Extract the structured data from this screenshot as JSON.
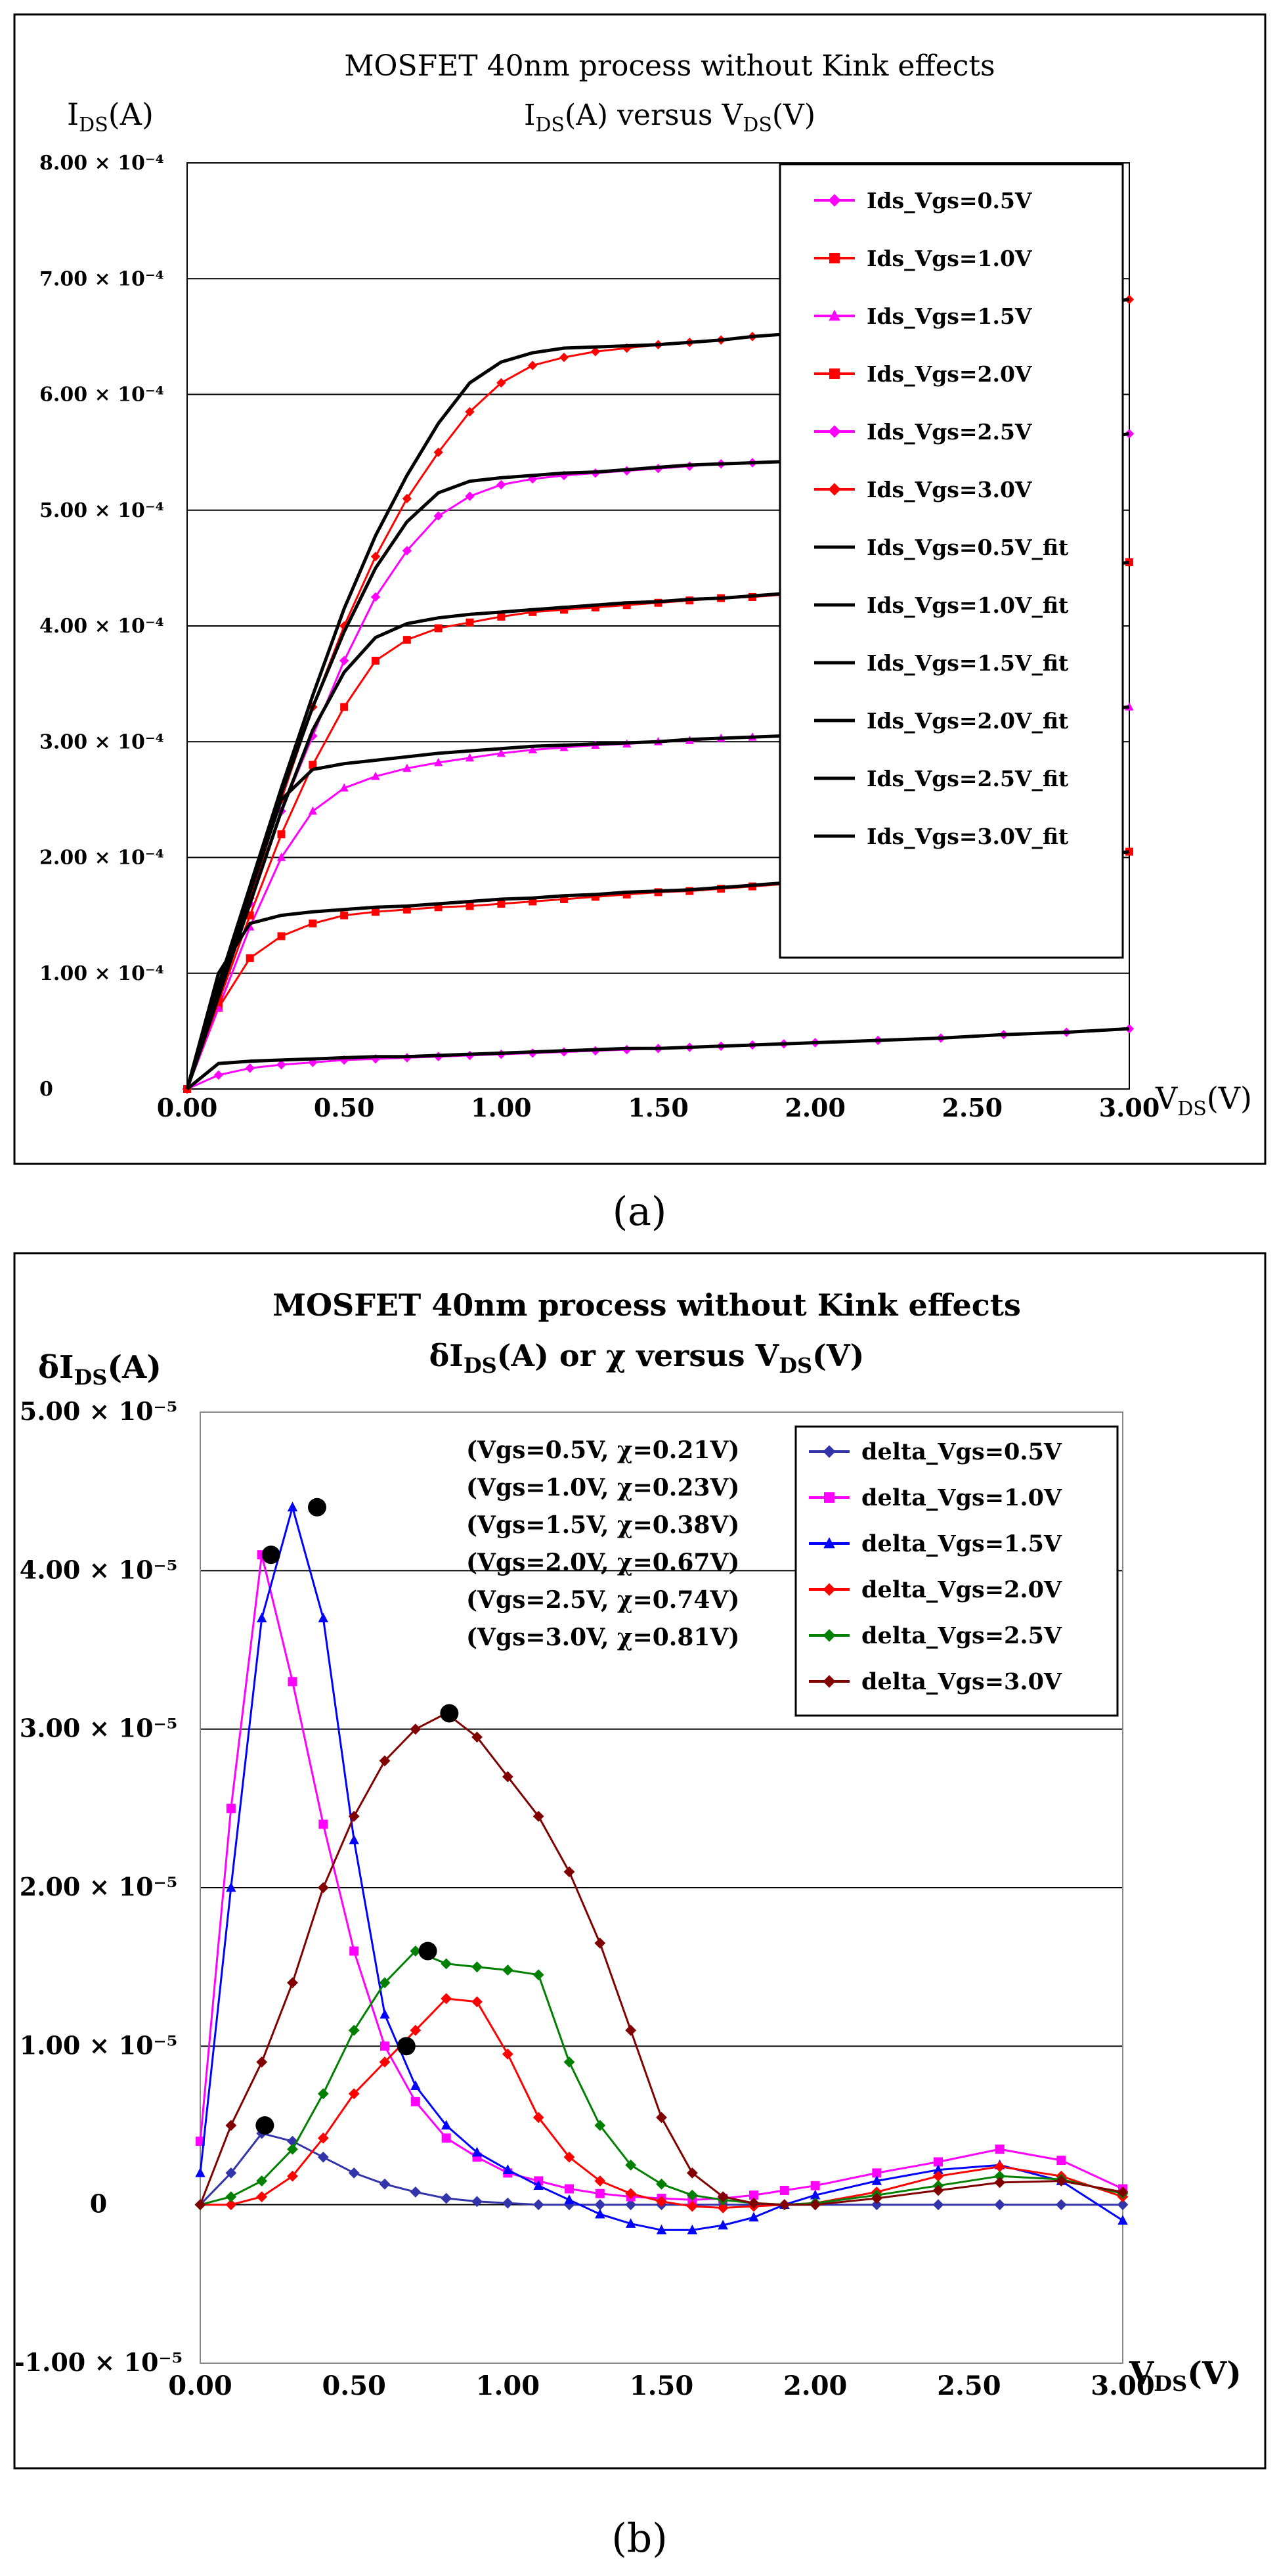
{
  "chart_data": [
    {
      "type": "line",
      "panel_caption": "(a)",
      "title": "MOSFET 40nm process without Kink effects",
      "subtitle": "IDS(A) versus VDS(V)",
      "subtitle_main": "I",
      "subtitle_sub": "DS",
      "subtitle_rest": "(A) versus V",
      "subtitle_sub2": "DS",
      "subtitle_tail": "(V)",
      "ylabel": "IDS(A)",
      "ylabel_main": "I",
      "ylabel_sub": "DS",
      "ylabel_rest": "(A)",
      "xlabel": "VDS(V)",
      "xlabel_main": "V",
      "xlabel_sub": "DS",
      "xlabel_rest": "(V)",
      "xlim": [
        0,
        3
      ],
      "ylim": [
        0,
        0.0008
      ],
      "x_ticks": [
        0,
        0.5,
        1,
        1.5,
        2,
        2.5,
        3
      ],
      "x_tick_labels": [
        "0.00",
        "0.50",
        "1.00",
        "1.50",
        "2.00",
        "2.50",
        "3.00"
      ],
      "y_ticks": [
        0,
        0.0001,
        0.0002,
        0.0003,
        0.0004,
        0.0005,
        0.0006,
        0.0007,
        0.0008
      ],
      "y_tick_labels": [
        "0",
        "1.00 × 10⁻⁴",
        "2.00 × 10⁻⁴",
        "3.00 × 10⁻⁴",
        "4.00 × 10⁻⁴",
        "5.00 × 10⁻⁴",
        "6.00 × 10⁻⁴",
        "7.00 × 10⁻⁴",
        "8.00 × 10⁻⁴"
      ],
      "grid": true,
      "legend_position": "top-right",
      "x": [
        0,
        0.1,
        0.2,
        0.3,
        0.4,
        0.5,
        0.6,
        0.7,
        0.8,
        0.9,
        1.0,
        1.1,
        1.2,
        1.3,
        1.4,
        1.5,
        1.6,
        1.7,
        1.8,
        1.9,
        2.0,
        2.2,
        2.4,
        2.6,
        2.8,
        3.0
      ],
      "series": [
        {
          "name": "Ids_Vgs=0.5V",
          "color": "#ff00ff",
          "marker": "diamond",
          "values": [
            0,
            1.2e-05,
            1.8e-05,
            2.1e-05,
            2.3e-05,
            2.5e-05,
            2.6e-05,
            2.7e-05,
            2.8e-05,
            2.9e-05,
            3e-05,
            3.1e-05,
            3.2e-05,
            3.3e-05,
            3.4e-05,
            3.5e-05,
            3.6e-05,
            3.7e-05,
            3.8e-05,
            3.9e-05,
            4e-05,
            4.2e-05,
            4.4e-05,
            4.7e-05,
            4.9e-05,
            5.2e-05
          ]
        },
        {
          "name": "Ids_Vgs=1.0V",
          "color": "#ff0000",
          "marker": "square",
          "values": [
            0,
            7e-05,
            0.000113,
            0.000132,
            0.000143,
            0.00015,
            0.000153,
            0.000155,
            0.000157,
            0.000158,
            0.00016,
            0.000162,
            0.000164,
            0.000166,
            0.000168,
            0.00017,
            0.000171,
            0.000173,
            0.000175,
            0.000177,
            0.00018,
            0.000183,
            0.000187,
            0.000193,
            0.000198,
            0.000205
          ]
        },
        {
          "name": "Ids_Vgs=1.5V",
          "color": "#ff00ff",
          "marker": "triangle",
          "values": [
            0,
            7e-05,
            0.00014,
            0.0002,
            0.00024,
            0.00026,
            0.00027,
            0.000277,
            0.000282,
            0.000286,
            0.00029,
            0.000293,
            0.000295,
            0.000297,
            0.000298,
            0.0003,
            0.000301,
            0.000303,
            0.000304,
            0.000305,
            0.000307,
            0.000311,
            0.000315,
            0.00032,
            0.000325,
            0.00033
          ]
        },
        {
          "name": "Ids_Vgs=2.0V",
          "color": "#ff0000",
          "marker": "square",
          "values": [
            0,
            7.5e-05,
            0.00015,
            0.00022,
            0.00028,
            0.00033,
            0.00037,
            0.000388,
            0.000398,
            0.000403,
            0.000408,
            0.000412,
            0.000414,
            0.000416,
            0.000418,
            0.00042,
            0.000422,
            0.000424,
            0.000425,
            0.000427,
            0.00043,
            0.000434,
            0.000438,
            0.000442,
            0.000448,
            0.000455
          ]
        },
        {
          "name": "Ids_Vgs=2.5V",
          "color": "#ff00ff",
          "marker": "diamond",
          "values": [
            0,
            8e-05,
            0.00016,
            0.00024,
            0.000305,
            0.00037,
            0.000425,
            0.000465,
            0.000495,
            0.000512,
            0.000522,
            0.000527,
            0.00053,
            0.000532,
            0.000534,
            0.000536,
            0.000538,
            0.00054,
            0.000541,
            0.000542,
            0.000543,
            0.000546,
            0.00055,
            0.000553,
            0.000558,
            0.000566
          ]
        },
        {
          "name": "Ids_Vgs=3.0V",
          "color": "#ff0000",
          "marker": "diamond",
          "values": [
            0,
            8e-05,
            0.000165,
            0.00025,
            0.00033,
            0.0004,
            0.00046,
            0.00051,
            0.00055,
            0.000585,
            0.00061,
            0.000625,
            0.000632,
            0.000637,
            0.00064,
            0.000643,
            0.000645,
            0.000647,
            0.00065,
            0.000652,
            0.000655,
            0.00066,
            0.000665,
            0.00067,
            0.000676,
            0.000682
          ]
        },
        {
          "name": "Ids_Vgs=0.5V_fit",
          "color": "#000000",
          "values": [
            0,
            2.2e-05,
            2.4e-05,
            2.5e-05,
            2.6e-05,
            2.7e-05,
            2.8e-05,
            2.8e-05,
            2.9e-05,
            3e-05,
            3.1e-05,
            3.2e-05,
            3.3e-05,
            3.4e-05,
            3.5e-05,
            3.5e-05,
            3.6e-05,
            3.7e-05,
            3.8e-05,
            3.9e-05,
            4e-05,
            4.2e-05,
            4.4e-05,
            4.7e-05,
            4.9e-05,
            5.2e-05
          ]
        },
        {
          "name": "Ids_Vgs=1.0V_fit",
          "color": "#000000",
          "values": [
            0,
            0.0001,
            0.000143,
            0.00015,
            0.000153,
            0.000155,
            0.000157,
            0.000158,
            0.00016,
            0.000162,
            0.000164,
            0.000165,
            0.000167,
            0.000168,
            0.00017,
            0.000171,
            0.000172,
            0.000174,
            0.000176,
            0.000178,
            0.00018,
            0.000183,
            0.000187,
            0.000193,
            0.000198,
            0.000205
          ]
        },
        {
          "name": "Ids_Vgs=1.5V_fit",
          "color": "#000000",
          "values": [
            0,
            8e-05,
            0.00017,
            0.00025,
            0.000276,
            0.000281,
            0.000284,
            0.000287,
            0.00029,
            0.000292,
            0.000294,
            0.000296,
            0.000297,
            0.000298,
            0.000299,
            0.0003,
            0.000302,
            0.000303,
            0.000304,
            0.000305,
            0.000307,
            0.000311,
            0.000315,
            0.00032,
            0.000325,
            0.00033
          ]
        },
        {
          "name": "Ids_Vgs=2.0V_fit",
          "color": "#000000",
          "values": [
            0,
            8e-05,
            0.00016,
            0.00024,
            0.00031,
            0.00036,
            0.00039,
            0.000402,
            0.000407,
            0.00041,
            0.000412,
            0.000414,
            0.000416,
            0.000418,
            0.00042,
            0.000421,
            0.000423,
            0.000424,
            0.000426,
            0.000428,
            0.00043,
            0.000434,
            0.000438,
            0.000442,
            0.000448,
            0.000455
          ]
        },
        {
          "name": "Ids_Vgs=2.5V_fit",
          "color": "#000000",
          "values": [
            0,
            8.5e-05,
            0.00017,
            0.000255,
            0.00033,
            0.000395,
            0.00045,
            0.00049,
            0.000515,
            0.000525,
            0.000528,
            0.00053,
            0.000532,
            0.000533,
            0.000535,
            0.000537,
            0.000539,
            0.00054,
            0.000541,
            0.000542,
            0.000543,
            0.000546,
            0.00055,
            0.000553,
            0.000558,
            0.000566
          ]
        },
        {
          "name": "Ids_Vgs=3.0V_fit",
          "color": "#000000",
          "values": [
            0,
            9e-05,
            0.000175,
            0.00026,
            0.00034,
            0.000415,
            0.000478,
            0.00053,
            0.000575,
            0.00061,
            0.000628,
            0.000636,
            0.00064,
            0.000641,
            0.000642,
            0.000643,
            0.000645,
            0.000647,
            0.00065,
            0.000652,
            0.000655,
            0.00066,
            0.000665,
            0.00067,
            0.000676,
            0.000682
          ]
        }
      ]
    },
    {
      "type": "line",
      "panel_caption": "(b)",
      "title": "MOSFET 40nm process without Kink effects",
      "subtitle": "δIDS(A) or χ versus VDS(V)",
      "subtitle_main": "δI",
      "subtitle_sub": "DS",
      "subtitle_rest": "(A) or χ versus V",
      "subtitle_sub2": "DS",
      "subtitle_tail": "(V)",
      "ylabel": "δIDS(A)",
      "ylabel_main": "δI",
      "ylabel_sub": "DS",
      "ylabel_rest": "(A)",
      "xlabel": "VDS(V)",
      "xlabel_main": "V",
      "xlabel_sub": "DS",
      "xlabel_rest": "(V)",
      "xlim": [
        0,
        3
      ],
      "ylim": [
        -1e-05,
        5e-05
      ],
      "x_ticks": [
        0,
        0.5,
        1,
        1.5,
        2,
        2.5,
        3
      ],
      "x_tick_labels": [
        "0.00",
        "0.50",
        "1.00",
        "1.50",
        "2.00",
        "2.50",
        "3.00"
      ],
      "y_ticks": [
        -1e-05,
        0,
        1e-05,
        2e-05,
        3e-05,
        4e-05,
        5e-05
      ],
      "y_tick_labels": [
        "-1.00 × 10⁻⁵",
        "0",
        "1.00 × 10⁻⁵",
        "2.00 × 10⁻⁵",
        "3.00 × 10⁻⁵",
        "4.00 × 10⁻⁵",
        "5.00 × 10⁻⁵"
      ],
      "grid": true,
      "legend_position": "top-right",
      "annotations": [
        "(Vgs=0.5V, χ=0.21V)",
        "(Vgs=1.0V, χ=0.23V)",
        "(Vgs=1.5V, χ=0.38V)",
        "(Vgs=2.0V, χ=0.67V)",
        "(Vgs=2.5V, χ=0.74V)",
        "(Vgs=3.0V, χ=0.81V)"
      ],
      "marked_points": [
        {
          "label": "Vgs=0.5V",
          "x": 0.21,
          "y": 5e-06
        },
        {
          "label": "Vgs=1.0V",
          "x": 0.23,
          "y": 4.1e-05
        },
        {
          "label": "Vgs=1.5V",
          "x": 0.38,
          "y": 4.4e-05
        },
        {
          "label": "Vgs=2.0V",
          "x": 0.67,
          "y": 1e-05
        },
        {
          "label": "Vgs=2.5V",
          "x": 0.74,
          "y": 1.6e-05
        },
        {
          "label": "Vgs=3.0V",
          "x": 0.81,
          "y": 3.1e-05
        }
      ],
      "x": [
        0,
        0.1,
        0.2,
        0.3,
        0.4,
        0.5,
        0.6,
        0.7,
        0.8,
        0.9,
        1.0,
        1.1,
        1.2,
        1.3,
        1.4,
        1.5,
        1.6,
        1.7,
        1.8,
        1.9,
        2.0,
        2.2,
        2.4,
        2.6,
        2.8,
        3.0
      ],
      "series": [
        {
          "name": "delta_Vgs=0.5V",
          "color": "#3333aa",
          "marker": "diamond",
          "values": [
            0,
            2e-06,
            4.5e-06,
            4e-06,
            3e-06,
            2e-06,
            1.3e-06,
            8e-07,
            4e-07,
            2e-07,
            1e-07,
            0,
            0,
            0,
            0,
            0,
            0,
            0,
            0,
            0,
            0,
            0,
            0,
            0,
            0,
            0
          ]
        },
        {
          "name": "delta_Vgs=1.0V",
          "color": "#ff00ff",
          "marker": "square",
          "values": [
            4e-06,
            2.5e-05,
            4.1e-05,
            3.3e-05,
            2.4e-05,
            1.6e-05,
            1e-05,
            6.5e-06,
            4.2e-06,
            3e-06,
            2e-06,
            1.5e-06,
            1e-06,
            7e-07,
            5e-07,
            4e-07,
            3e-07,
            4e-07,
            6e-07,
            9e-07,
            1.2e-06,
            2e-06,
            2.7e-06,
            3.5e-06,
            2.8e-06,
            1e-06
          ]
        },
        {
          "name": "delta_Vgs=1.5V",
          "color": "#0000ff",
          "marker": "triangle",
          "values": [
            2e-06,
            2e-05,
            3.7e-05,
            4.4e-05,
            3.7e-05,
            2.3e-05,
            1.2e-05,
            7.5e-06,
            5e-06,
            3.3e-06,
            2.2e-06,
            1.2e-06,
            3e-07,
            -6e-07,
            -1.2e-06,
            -1.6e-06,
            -1.6e-06,
            -1.3e-06,
            -8e-07,
            0,
            6e-07,
            1.5e-06,
            2.2e-06,
            2.5e-06,
            1.5e-06,
            -1e-06
          ]
        },
        {
          "name": "delta_Vgs=2.0V",
          "color": "#ff0000",
          "marker": "diamond",
          "values": [
            0,
            0,
            5e-07,
            1.8e-06,
            4.2e-06,
            7e-06,
            9e-06,
            1.1e-05,
            1.3e-05,
            1.28e-05,
            9.5e-06,
            5.5e-06,
            3e-06,
            1.5e-06,
            7e-07,
            2e-07,
            -1e-07,
            -2e-07,
            -1e-07,
            0,
            1e-07,
            8e-07,
            1.8e-06,
            2.4e-06,
            1.8e-06,
            5e-07
          ]
        },
        {
          "name": "delta_Vgs=2.5V",
          "color": "#008000",
          "marker": "diamond",
          "values": [
            0,
            5e-07,
            1.5e-06,
            3.5e-06,
            7e-06,
            1.1e-05,
            1.4e-05,
            1.6e-05,
            1.52e-05,
            1.5e-05,
            1.48e-05,
            1.45e-05,
            9e-06,
            5e-06,
            2.5e-06,
            1.3e-06,
            6e-07,
            3e-07,
            1e-07,
            0,
            1e-07,
            6e-07,
            1.2e-06,
            1.8e-06,
            1.6e-06,
            7e-07
          ]
        },
        {
          "name": "delta_Vgs=3.0V",
          "color": "#800000",
          "marker": "diamond",
          "values": [
            0,
            5e-06,
            9e-06,
            1.4e-05,
            2e-05,
            2.45e-05,
            2.8e-05,
            3e-05,
            3.1e-05,
            2.95e-05,
            2.7e-05,
            2.45e-05,
            2.1e-05,
            1.65e-05,
            1.1e-05,
            5.5e-06,
            2e-06,
            5e-07,
            1e-07,
            0,
            0,
            4e-07,
            9e-07,
            1.4e-06,
            1.5e-06,
            8e-07
          ]
        }
      ]
    }
  ]
}
